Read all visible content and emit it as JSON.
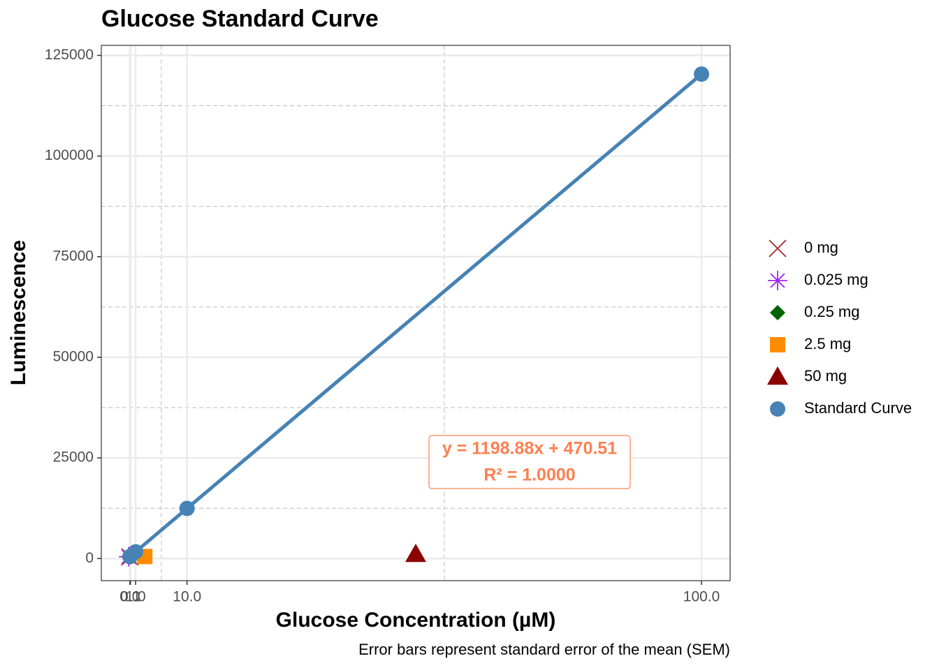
{
  "chart_data": {
    "type": "scatter",
    "title": "Glucose Standard Curve",
    "x_label": "Glucose Concentration (µM)",
    "y_label": "Luminescence",
    "caption": "Error bars represent standard error of the mean (SEM)",
    "annotation": [
      "y = 1198.88x + 470.51",
      "R² = 1.0000"
    ],
    "xlim": [
      -5,
      105
    ],
    "ylim": [
      -5500,
      127500
    ],
    "xticks": [
      {
        "value": 0,
        "label": "0.0"
      },
      {
        "value": 0.1,
        "label": "0.1"
      },
      {
        "value": 1,
        "label": "1.0"
      },
      {
        "value": 10,
        "label": "10.0"
      },
      {
        "value": 100,
        "label": "100.0"
      }
    ],
    "x_minor_ticks": [
      5.5,
      55
    ],
    "yticks": [
      0,
      25000,
      50000,
      75000,
      100000,
      125000
    ],
    "y_minor_ticks": [
      12500,
      37500,
      62500,
      87500,
      112500
    ],
    "grid": true,
    "legend": "right",
    "series": [
      {
        "name": "0 mg",
        "color": "#a52a2a",
        "shape": "cross",
        "x": [
          0
        ],
        "values": [
          400
        ]
      },
      {
        "name": "0.025 mg",
        "color": "#a020f0",
        "shape": "asterisk",
        "x": [
          -0.2
        ],
        "values": [
          450
        ]
      },
      {
        "name": "0.25 mg",
        "color": "#006400",
        "shape": "diamond",
        "x": [
          0
        ],
        "values": [
          500
        ]
      },
      {
        "name": "2.5 mg",
        "color": "#ff8c00",
        "shape": "square",
        "x": [
          2.6
        ],
        "values": [
          500
        ]
      },
      {
        "name": "50 mg",
        "color": "#8b0000",
        "shape": "triangle",
        "x": [
          50
        ],
        "values": [
          1100
        ]
      },
      {
        "name": "Standard Curve",
        "color": "#4682b4",
        "shape": "circle",
        "line": true,
        "x": [
          0,
          0.1,
          1,
          10,
          100
        ],
        "values": [
          470,
          590,
          1670,
          12460,
          120360
        ]
      }
    ]
  }
}
